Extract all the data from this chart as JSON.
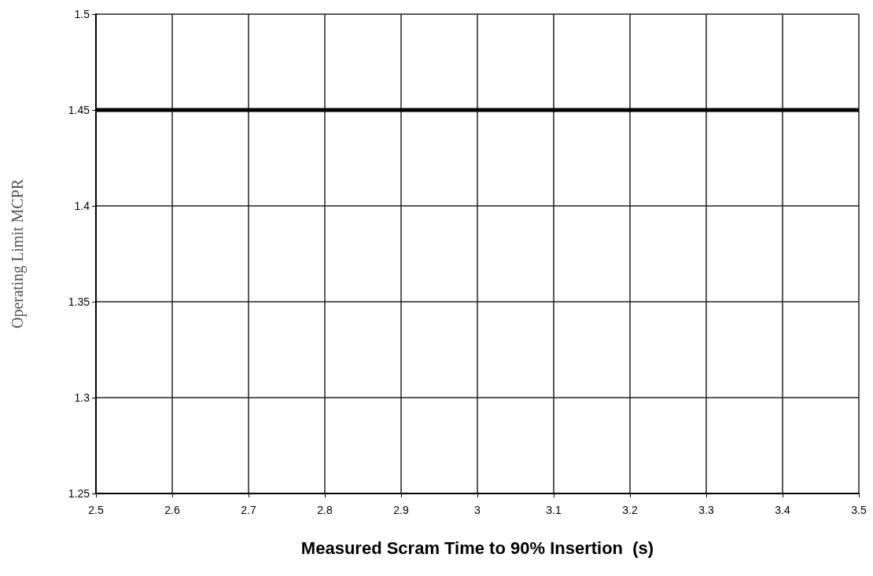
{
  "chart_data": {
    "type": "line",
    "xlabel": "Measured Scram Time to 90% Insertion  (s)",
    "ylabel": "Operating Limit MCPR",
    "x": [
      2.5,
      3.5
    ],
    "series": [
      {
        "color": "#000000",
        "values": [
          1.45,
          1.45
        ]
      }
    ],
    "xlim": [
      2.5,
      3.5
    ],
    "xticks": [
      2.5,
      2.6,
      2.7,
      2.8,
      2.9,
      3,
      3.1,
      3.2,
      3.3,
      3.4,
      3.5
    ],
    "ylim": [
      1.25,
      1.5
    ],
    "yticks": [
      1.25,
      1.3,
      1.35,
      1.4,
      1.45,
      1.5
    ],
    "grid": true,
    "marker": "none",
    "line_style": "solid"
  }
}
